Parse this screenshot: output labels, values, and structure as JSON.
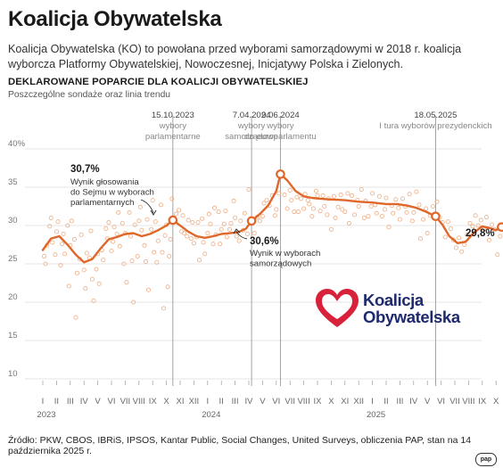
{
  "header": {
    "title": "Koalicja Obywatelska",
    "intro": "Koalicja Obywatelska (KO) to powołana przed wyborami samorządowymi w 2018 r. koalicja wyborcza Platformy Obywatelskiej, Nowoczesnej, Inicjatywy Polska i Zielonych."
  },
  "chart_heading": "DEKLAROWANE POPARCIE DLA KOALICJI OBYWATELSKIEJ",
  "chart_subheading": "Poszczególne sondaże oraz linia trendu",
  "logo": {
    "line1": "Koalicja",
    "line2": "Obywatelska",
    "heart_color": "#d8213a",
    "text_color": "#1f2a6e"
  },
  "source": "Źródło: PKW, CBOS, IBRiS, IPSOS, Kantar Public, Social Changes, United Surveys, obliczenia PAP, stan na 14 października 2025 r.",
  "agency_mark": "pap",
  "chart_data": {
    "type": "scatter",
    "accent_color": "#e0672a",
    "points_color": "#f0b48e",
    "grid": true,
    "ylim": [
      10,
      40
    ],
    "yticks": [
      "10",
      "15",
      "20",
      "25",
      "30",
      "35",
      "40%"
    ],
    "month_labels": [
      "I",
      "II",
      "III",
      "IV",
      "V",
      "VI",
      "VII",
      "VIII",
      "IX",
      "X",
      "XI",
      "XII",
      "I",
      "II",
      "III",
      "IV",
      "V",
      "VI",
      "VII",
      "VIII",
      "IX",
      "X",
      "XI",
      "XII",
      "I",
      "II",
      "III",
      "IV",
      "V",
      "VI",
      "VII",
      "VIII",
      "IX",
      "X"
    ],
    "year_labels": [
      {
        "label": "2023",
        "month": 0
      },
      {
        "label": "2024",
        "month": 12
      },
      {
        "label": "2025",
        "month": 24
      }
    ],
    "events": [
      {
        "date": "15.10.2023",
        "label1": "wybory",
        "label2": "parlamentarne",
        "month": 9.47
      },
      {
        "date": "7.04.2024",
        "label1": "wybory",
        "label2": "samorządowe",
        "month": 15.2
      },
      {
        "date": "9.06.2024",
        "label1": "wybory",
        "label2": "do europarlamentu",
        "month": 17.3
      },
      {
        "date": "18.05.2025",
        "label1": "I tura wyborów prezydenckich",
        "label2": "",
        "month": 28.6
      }
    ],
    "annotations": [
      {
        "value": "30,7%",
        "text": [
          "Wynik głosowania",
          "do Sejmu w wyborach",
          "parlamentarnych"
        ]
      },
      {
        "value": "30,6%",
        "text": [
          "Wynik w wyborach",
          "samorządowych"
        ]
      },
      {
        "value": "29,8%",
        "text": []
      }
    ],
    "trend": [
      [
        0,
        26.8
      ],
      [
        0.6,
        28.3
      ],
      [
        1.2,
        28.6
      ],
      [
        1.8,
        27.5
      ],
      [
        2.4,
        26.2
      ],
      [
        3.0,
        25.2
      ],
      [
        3.6,
        25.6
      ],
      [
        4.2,
        27.0
      ],
      [
        4.8,
        28.2
      ],
      [
        5.4,
        28.5
      ],
      [
        6.0,
        28.9
      ],
      [
        6.6,
        29.0
      ],
      [
        7.2,
        28.6
      ],
      [
        7.8,
        28.9
      ],
      [
        8.4,
        29.4
      ],
      [
        9.0,
        30.0
      ],
      [
        9.47,
        30.7
      ],
      [
        10.0,
        30.0
      ],
      [
        10.6,
        29.2
      ],
      [
        11.2,
        28.6
      ],
      [
        11.8,
        28.4
      ],
      [
        12.4,
        28.6
      ],
      [
        13.0,
        28.9
      ],
      [
        13.6,
        29.0
      ],
      [
        14.2,
        29.1
      ],
      [
        14.8,
        29.6
      ],
      [
        15.2,
        30.6
      ],
      [
        15.8,
        31.5
      ],
      [
        16.4,
        32.6
      ],
      [
        17.0,
        34.5
      ],
      [
        17.3,
        36.7
      ],
      [
        17.8,
        35.9
      ],
      [
        18.4,
        34.5
      ],
      [
        19.0,
        33.8
      ],
      [
        19.6,
        33.6
      ],
      [
        20.2,
        33.5
      ],
      [
        21.0,
        33.4
      ],
      [
        22.0,
        33.3
      ],
      [
        23.0,
        33.1
      ],
      [
        24.0,
        33.0
      ],
      [
        25.0,
        32.8
      ],
      [
        25.8,
        32.8
      ],
      [
        26.5,
        32.6
      ],
      [
        27.2,
        32.3
      ],
      [
        27.9,
        31.8
      ],
      [
        28.6,
        31.2
      ],
      [
        29.1,
        30.1
      ],
      [
        29.6,
        28.6
      ],
      [
        30.2,
        27.7
      ],
      [
        30.8,
        27.9
      ],
      [
        31.4,
        29.1
      ],
      [
        32.0,
        29.9
      ],
      [
        32.5,
        29.7
      ],
      [
        33.0,
        29.4
      ],
      [
        33.4,
        29.8
      ]
    ],
    "trend_markers": [
      [
        9.47,
        30.7
      ],
      [
        15.2,
        30.6
      ],
      [
        17.3,
        36.7
      ],
      [
        28.6,
        31.2
      ],
      [
        33.4,
        29.8
      ]
    ],
    "polls": [
      [
        0.1,
        26.0
      ],
      [
        0.2,
        25.0
      ],
      [
        0.3,
        27.4
      ],
      [
        0.5,
        29.9
      ],
      [
        0.6,
        31.0
      ],
      [
        0.7,
        27.8
      ],
      [
        0.9,
        26.2
      ],
      [
        1.0,
        29.2
      ],
      [
        1.1,
        30.5
      ],
      [
        1.3,
        24.8
      ],
      [
        1.4,
        27.6
      ],
      [
        1.5,
        28.9
      ],
      [
        1.6,
        26.3
      ],
      [
        1.8,
        30.0
      ],
      [
        1.9,
        22.1
      ],
      [
        2.0,
        27.4
      ],
      [
        2.1,
        30.6
      ],
      [
        2.3,
        28.2
      ],
      [
        2.4,
        18.0
      ],
      [
        2.5,
        23.8
      ],
      [
        2.7,
        25.6
      ],
      [
        2.8,
        28.8
      ],
      [
        3.0,
        24.2
      ],
      [
        3.1,
        21.8
      ],
      [
        3.2,
        26.4
      ],
      [
        3.4,
        25.8
      ],
      [
        3.5,
        29.3
      ],
      [
        3.6,
        23.0
      ],
      [
        3.7,
        20.2
      ],
      [
        3.9,
        24.3
      ],
      [
        4.0,
        26.3
      ],
      [
        4.1,
        22.4
      ],
      [
        4.3,
        26.8
      ],
      [
        4.4,
        25.5
      ],
      [
        4.6,
        29.6
      ],
      [
        4.7,
        28.3
      ],
      [
        4.8,
        30.4
      ],
      [
        5.0,
        26.7
      ],
      [
        5.1,
        27.9
      ],
      [
        5.2,
        29.8
      ],
      [
        5.4,
        28.9
      ],
      [
        5.5,
        31.7
      ],
      [
        5.6,
        27.3
      ],
      [
        5.8,
        30.3
      ],
      [
        5.9,
        25.0
      ],
      [
        6.0,
        29.0
      ],
      [
        6.1,
        22.6
      ],
      [
        6.3,
        31.7
      ],
      [
        6.4,
        28.6
      ],
      [
        6.5,
        25.4
      ],
      [
        6.6,
        20.0
      ],
      [
        6.7,
        30.1
      ],
      [
        6.9,
        26.0
      ],
      [
        7.0,
        30.6
      ],
      [
        7.1,
        32.4
      ],
      [
        7.2,
        29.4
      ],
      [
        7.4,
        27.4
      ],
      [
        7.5,
        25.3
      ],
      [
        7.6,
        30.8
      ],
      [
        7.7,
        21.6
      ],
      [
        7.9,
        29.5
      ],
      [
        8.0,
        33.3
      ],
      [
        8.1,
        26.5
      ],
      [
        8.2,
        30.5
      ],
      [
        8.3,
        25.2
      ],
      [
        8.4,
        28.0
      ],
      [
        8.6,
        32.7
      ],
      [
        8.7,
        26.5
      ],
      [
        8.8,
        19.2
      ],
      [
        8.9,
        28.7
      ],
      [
        9.0,
        30.1
      ],
      [
        9.1,
        22.0
      ],
      [
        9.2,
        26.0
      ],
      [
        9.3,
        28.2
      ],
      [
        9.4,
        33.5
      ],
      [
        9.7,
        31.5
      ],
      [
        9.9,
        32.0
      ],
      [
        10.1,
        29.2
      ],
      [
        10.2,
        31.3
      ],
      [
        10.3,
        29.0
      ],
      [
        10.5,
        28.6
      ],
      [
        10.6,
        30.7
      ],
      [
        10.8,
        28.3
      ],
      [
        10.9,
        30.4
      ],
      [
        11.0,
        27.7
      ],
      [
        11.2,
        28.5
      ],
      [
        11.3,
        30.4
      ],
      [
        11.4,
        25.5
      ],
      [
        11.6,
        30.9
      ],
      [
        11.7,
        27.8
      ],
      [
        11.8,
        26.3
      ],
      [
        12.0,
        29.0
      ],
      [
        12.1,
        31.5
      ],
      [
        12.2,
        30.2
      ],
      [
        12.4,
        27.6
      ],
      [
        12.5,
        32.3
      ],
      [
        12.6,
        28.8
      ],
      [
        12.8,
        31.8
      ],
      [
        12.9,
        27.6
      ],
      [
        13.0,
        29.5
      ],
      [
        13.2,
        30.2
      ],
      [
        13.3,
        31.9
      ],
      [
        13.4,
        28.5
      ],
      [
        13.6,
        29.5
      ],
      [
        13.7,
        30.3
      ],
      [
        13.9,
        33.2
      ],
      [
        14.0,
        31.0
      ],
      [
        14.1,
        28.6
      ],
      [
        14.3,
        28.0
      ],
      [
        14.4,
        30.6
      ],
      [
        14.6,
        29.4
      ],
      [
        14.7,
        31.6
      ],
      [
        14.9,
        28.9
      ],
      [
        15.0,
        34.7
      ],
      [
        15.4,
        29.0
      ],
      [
        15.6,
        31.1
      ],
      [
        15.8,
        30.6
      ],
      [
        16.0,
        31.2
      ],
      [
        16.1,
        32.9
      ],
      [
        16.3,
        33.3
      ],
      [
        16.5,
        32.6
      ],
      [
        16.7,
        33.9
      ],
      [
        16.9,
        31.3
      ],
      [
        17.0,
        32.1
      ],
      [
        17.2,
        34.2
      ],
      [
        17.6,
        34.0
      ],
      [
        17.8,
        32.2
      ],
      [
        18.0,
        34.6
      ],
      [
        18.1,
        33.3
      ],
      [
        18.3,
        31.8
      ],
      [
        18.5,
        33.7
      ],
      [
        18.6,
        31.8
      ],
      [
        18.8,
        33.5
      ],
      [
        19.0,
        32.2
      ],
      [
        19.1,
        34.1
      ],
      [
        19.3,
        33.3
      ],
      [
        19.4,
        32.8
      ],
      [
        19.6,
        31.2
      ],
      [
        19.7,
        32.2
      ],
      [
        19.9,
        34.5
      ],
      [
        20.0,
        33.9
      ],
      [
        20.2,
        31.9
      ],
      [
        20.4,
        33.9
      ],
      [
        20.5,
        32.5
      ],
      [
        20.7,
        31.4
      ],
      [
        20.8,
        33.5
      ],
      [
        21.0,
        29.5
      ],
      [
        21.2,
        33.8
      ],
      [
        21.3,
        31.0
      ],
      [
        21.5,
        32.4
      ],
      [
        21.7,
        34.0
      ],
      [
        21.8,
        32.1
      ],
      [
        22.0,
        31.8
      ],
      [
        22.2,
        34.2
      ],
      [
        22.3,
        30.3
      ],
      [
        22.5,
        33.9
      ],
      [
        22.7,
        31.4
      ],
      [
        22.9,
        33.3
      ],
      [
        23.0,
        32.5
      ],
      [
        23.2,
        34.7
      ],
      [
        23.4,
        31.0
      ],
      [
        23.5,
        33.2
      ],
      [
        23.7,
        31.2
      ],
      [
        23.9,
        32.5
      ],
      [
        24.0,
        34.2
      ],
      [
        24.2,
        32.7
      ],
      [
        24.3,
        31.6
      ],
      [
        24.5,
        33.8
      ],
      [
        24.7,
        31.2
      ],
      [
        24.9,
        32.1
      ],
      [
        25.0,
        33.6
      ],
      [
        25.2,
        29.8
      ],
      [
        25.4,
        32.6
      ],
      [
        25.5,
        31.6
      ],
      [
        25.7,
        33.4
      ],
      [
        25.9,
        32.3
      ],
      [
        26.0,
        30.8
      ],
      [
        26.2,
        33.5
      ],
      [
        26.4,
        32.5
      ],
      [
        26.5,
        31.7
      ],
      [
        26.7,
        34.1
      ],
      [
        26.9,
        30.6
      ],
      [
        27.0,
        31.7
      ],
      [
        27.2,
        34.4
      ],
      [
        27.4,
        32.7
      ],
      [
        27.5,
        28.3
      ],
      [
        27.7,
        30.8
      ],
      [
        27.9,
        32.2
      ],
      [
        28.0,
        29.0
      ],
      [
        28.2,
        31.3
      ],
      [
        28.4,
        32.5
      ],
      [
        28.7,
        33.1
      ],
      [
        28.9,
        31.1
      ],
      [
        29.1,
        30.4
      ],
      [
        29.3,
        28.5
      ],
      [
        29.5,
        30.5
      ],
      [
        29.7,
        29.6
      ],
      [
        29.9,
        28.1
      ],
      [
        30.1,
        27.1
      ],
      [
        30.3,
        28.4
      ],
      [
        30.5,
        26.6
      ],
      [
        30.7,
        27.5
      ],
      [
        30.9,
        28.8
      ],
      [
        31.1,
        30.3
      ],
      [
        31.3,
        29.9
      ],
      [
        31.5,
        31.3
      ],
      [
        31.7,
        30.0
      ],
      [
        31.9,
        30.7
      ],
      [
        32.1,
        29.5
      ],
      [
        32.3,
        31.1
      ],
      [
        32.5,
        28.1
      ],
      [
        32.7,
        30.1
      ],
      [
        32.9,
        29.5
      ],
      [
        33.1,
        26.2
      ],
      [
        33.3,
        28.6
      ]
    ]
  }
}
